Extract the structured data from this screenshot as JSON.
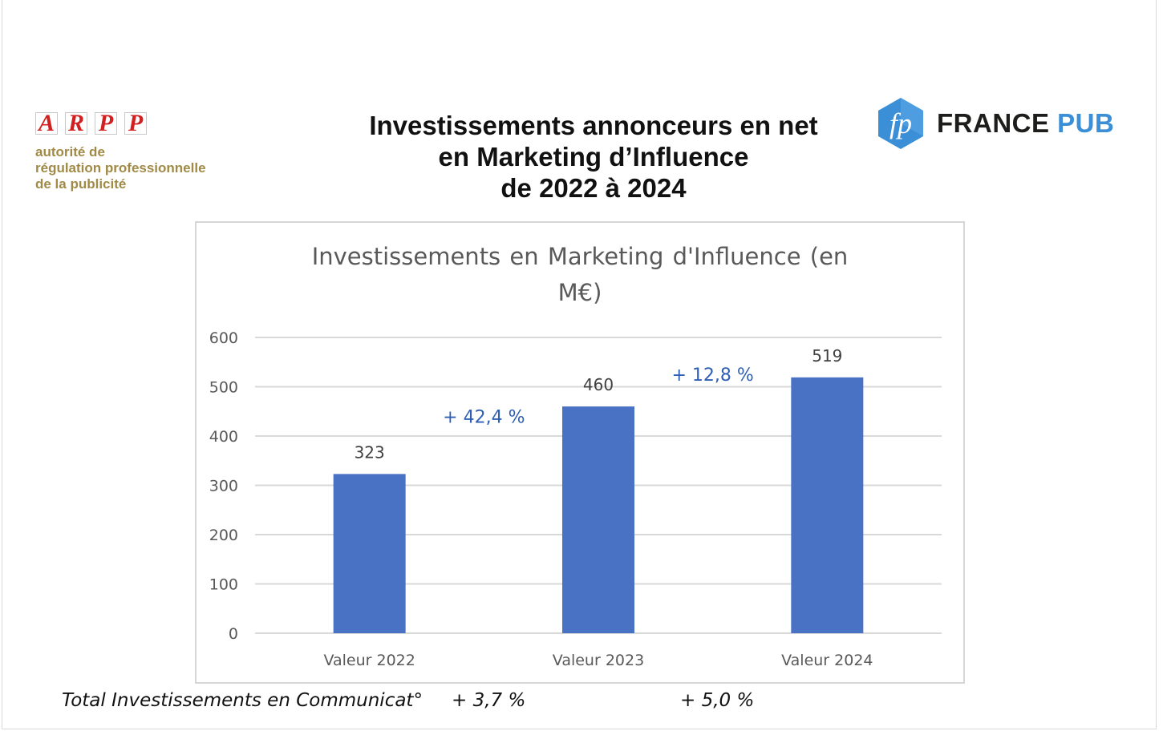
{
  "logos": {
    "arpp": {
      "letters": [
        "A",
        "R",
        "P",
        "P"
      ],
      "subtitle_lines": [
        "autorité de",
        "régulation professionnelle",
        "de la publicité"
      ],
      "letter_color": "#d21f1f",
      "subtitle_color": "#a08a46"
    },
    "francepub": {
      "mark": "fp",
      "word1": "FRANCE",
      "word2": "PUB",
      "accent": "#3a8fd6"
    }
  },
  "header": {
    "title_lines": [
      "Investissements annonceurs en net",
      "en Marketing d’Influence",
      "de 2022 à 2024"
    ]
  },
  "chart_data": {
    "type": "bar",
    "title": "Investissements en Marketing d'Influence (en M€)",
    "categories": [
      "Valeur 2022",
      "Valeur 2023",
      "Valeur 2024"
    ],
    "values": [
      323,
      460,
      519
    ],
    "data_labels": [
      "323",
      "460",
      "519"
    ],
    "ylim": [
      0,
      600
    ],
    "yticks": [
      0,
      100,
      200,
      300,
      400,
      500,
      600
    ],
    "grid": true,
    "legend": "none",
    "bar_color": "#4a72c4",
    "annotations": [
      {
        "text": "+ 42,4 %",
        "between": [
          0,
          1
        ],
        "anchor_value": 440
      },
      {
        "text": "+ 12,8 %",
        "between": [
          1,
          2
        ],
        "anchor_value": 525
      }
    ],
    "annotation_color": "#2f5fb3"
  },
  "footer": {
    "label": "Total Investissements en Communicat°",
    "values": [
      "+ 3,7 %",
      "+ 5,0 %"
    ]
  }
}
